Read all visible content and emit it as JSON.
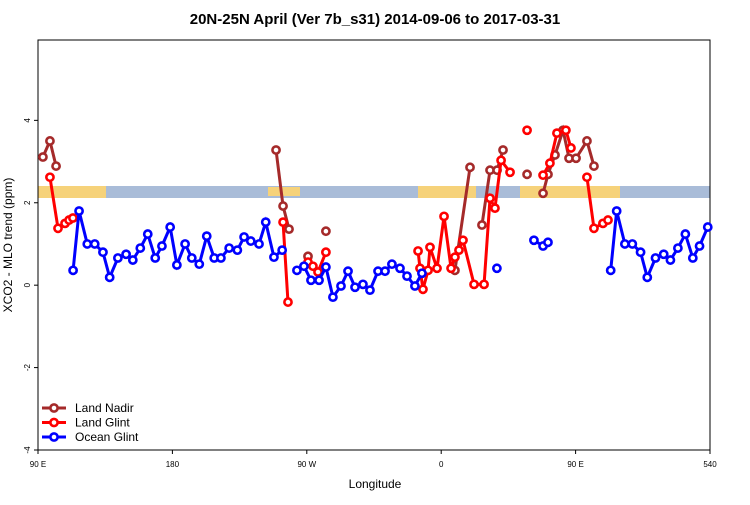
{
  "chart_data": {
    "type": "line",
    "title": "20N-25N April (Ver 7b_s31)   2014-09-06 to 2017-03-31",
    "x_label": "Longitude",
    "y_label": "XCO2 - MLO trend (ppm)",
    "xlim": [
      90,
      540
    ],
    "ylim": [
      -4,
      5.95
    ],
    "xticks": [
      {
        "value": 90,
        "label": "90 E"
      },
      180,
      {
        "value": 270,
        "label": "90 W"
      },
      {
        "value": 360,
        "label": "0"
      },
      {
        "value": 450,
        "label": "90 E"
      },
      540
    ],
    "yticks": [
      -4,
      -2,
      0,
      2,
      4
    ],
    "legend": "bottom-left",
    "series": [
      {
        "name": "Land Nadir",
        "color": "#a52a2a",
        "x": [
          93.3,
          98.0,
          102.1,
          null,
          249.4,
          254.1,
          258.1,
          null,
          270.8,
          null,
          282.8,
          null,
          369.2,
          379.3,
          null,
          387.3,
          392.7,
          397.4,
          401.4,
          null,
          417.5,
          null,
          428.2,
          431.5,
          436.2,
          441.6,
          445.6,
          450.3,
          457.6,
          462.3
        ],
        "values": [
          3.11,
          3.5,
          2.89,
          null,
          3.28,
          1.92,
          1.36,
          null,
          0.7,
          null,
          1.31,
          null,
          0.36,
          2.86,
          null,
          1.46,
          2.79,
          2.79,
          3.28,
          null,
          2.69,
          null,
          2.23,
          2.69,
          3.16,
          3.76,
          3.08,
          3.08,
          3.5,
          2.89
        ]
      },
      {
        "name": "Land Glint",
        "color": "#ff0000",
        "x": [
          98.0,
          103.4,
          108.1,
          110.8,
          113.4,
          null,
          254.1,
          257.4,
          null,
          270.8,
          274.1,
          277.5,
          282.8,
          null,
          344.5,
          345.8,
          347.8,
          351.2,
          352.5,
          357.2,
          361.9,
          366.6,
          369.2,
          371.9,
          374.6,
          382.0,
          388.7,
          392.7,
          396.0,
          400.1,
          406.1,
          null,
          417.5,
          null,
          428.2,
          432.8,
          437.5,
          443.5,
          446.9,
          null,
          457.6,
          462.3,
          468.3,
          471.7
        ],
        "values": [
          2.62,
          1.38,
          1.5,
          1.58,
          1.63,
          null,
          1.53,
          -0.41,
          null,
          0.56,
          0.46,
          0.32,
          0.8,
          null,
          0.83,
          0.41,
          -0.1,
          0.36,
          0.92,
          0.41,
          1.67,
          0.41,
          0.68,
          0.85,
          1.09,
          0.02,
          0.02,
          2.11,
          1.87,
          3.03,
          2.74,
          null,
          3.76,
          null,
          2.67,
          2.96,
          3.69,
          3.76,
          3.33,
          null,
          2.62,
          1.38,
          1.5,
          1.58
        ]
      },
      {
        "name": "Ocean Glint",
        "color": "#0000ff",
        "x": [
          113.5,
          117.5,
          123,
          128,
          133.5,
          138,
          143.5,
          149,
          153.5,
          158.5,
          163.5,
          168.5,
          173,
          178.5,
          183,
          188.5,
          193,
          198,
          203,
          208,
          212.5,
          218,
          223.5,
          228,
          232.5,
          238,
          242.5,
          248,
          253.5,
          null,
          263.4,
          268.1,
          272.8,
          278.2,
          282.8,
          287.5,
          292.9,
          297.6,
          302.3,
          307.6,
          312.3,
          317.7,
          322.4,
          327.0,
          332.4,
          337.1,
          342.4,
          347.1,
          null,
          397.3,
          null,
          422.1,
          428.2,
          431.5,
          null,
          473.5,
          477.5,
          483,
          488,
          493.5,
          498,
          503.5,
          509,
          513.5,
          518.5,
          523.5,
          528.5,
          533,
          538.5
        ],
        "values": [
          0.36,
          1.8,
          1.0,
          1.0,
          0.8,
          0.19,
          0.66,
          0.75,
          0.61,
          0.9,
          1.24,
          0.66,
          0.95,
          1.41,
          0.49,
          1.0,
          0.66,
          0.51,
          1.19,
          0.66,
          0.66,
          0.9,
          0.85,
          1.17,
          1.07,
          1.0,
          1.53,
          0.68,
          0.85,
          null,
          0.36,
          0.46,
          0.12,
          0.12,
          0.44,
          -0.29,
          -0.02,
          0.34,
          -0.05,
          0.02,
          -0.12,
          0.34,
          0.34,
          0.51,
          0.41,
          0.22,
          -0.02,
          0.29,
          null,
          0.41,
          null,
          1.09,
          0.95,
          1.04,
          null,
          0.36,
          1.8,
          1.0,
          1.0,
          0.8,
          0.19,
          0.66,
          0.75,
          0.61,
          0.9,
          1.24,
          0.66,
          0.95,
          1.41
        ]
      }
    ]
  }
}
